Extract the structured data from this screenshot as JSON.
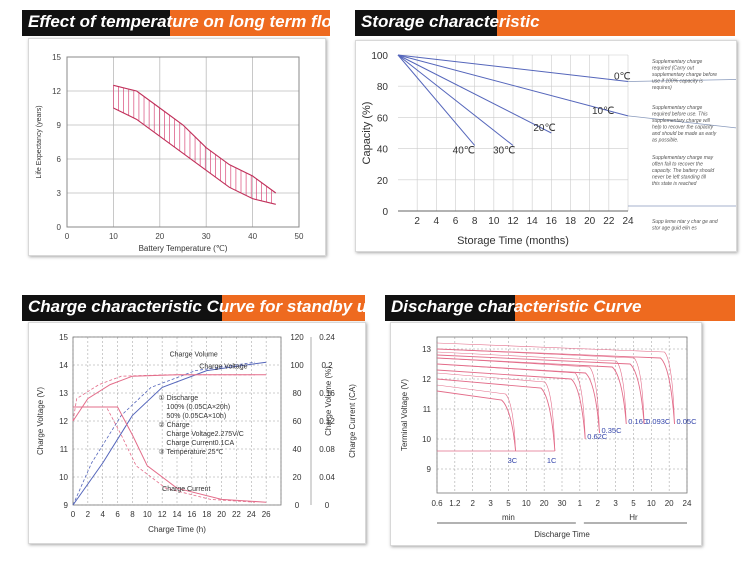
{
  "panels": {
    "float_life": {
      "title": "Effect of temperature on long term float life"
    },
    "storage": {
      "title": "Storage characteristic"
    },
    "charge": {
      "title": "Charge characteristic Curve for standby use"
    },
    "discharge": {
      "title": "Discharge characteristic Curve"
    }
  },
  "colors": {
    "orange": "#ee6a1f",
    "black": "#111111",
    "curve_red": "#e36d8a",
    "curve_blue": "#5566bb",
    "grid": "#c8c8c8"
  },
  "chart_data": [
    {
      "type": "area",
      "title": "Effect of temperature on long term float life",
      "xlabel": "Battery Temperature (℃)",
      "ylabel": "Life Expectancy (years)",
      "xlim": [
        0,
        50
      ],
      "ylim": [
        0,
        15
      ],
      "x_ticks": [
        0,
        10,
        20,
        30,
        40,
        50
      ],
      "y_ticks": [
        0,
        3,
        6,
        9,
        12,
        15
      ],
      "band": {
        "upper": [
          [
            10,
            12.5
          ],
          [
            15,
            12
          ],
          [
            20,
            10.5
          ],
          [
            25,
            9
          ],
          [
            30,
            7
          ],
          [
            35,
            5.5
          ],
          [
            40,
            4.5
          ],
          [
            45,
            3
          ]
        ],
        "lower": [
          [
            10,
            10.5
          ],
          [
            15,
            9.5
          ],
          [
            20,
            8
          ],
          [
            25,
            6.5
          ],
          [
            30,
            5
          ],
          [
            35,
            3.5
          ],
          [
            40,
            2.5
          ],
          [
            45,
            2
          ]
        ]
      }
    },
    {
      "type": "line",
      "title": "Storage characteristic",
      "xlabel": "Storage Time (months)",
      "ylabel": "Capacity (%)",
      "xlim": [
        0,
        24
      ],
      "ylim": [
        0,
        100
      ],
      "x_ticks": [
        2,
        4,
        6,
        8,
        10,
        12,
        14,
        16,
        18,
        20,
        22,
        24
      ],
      "y_ticks": [
        0,
        20,
        40,
        60,
        80,
        100
      ],
      "series": [
        {
          "name": "0℃",
          "points": [
            [
              0,
              100
            ],
            [
              24,
              83
            ]
          ]
        },
        {
          "name": "10℃",
          "points": [
            [
              0,
              100
            ],
            [
              24,
              61
            ]
          ]
        },
        {
          "name": "20℃",
          "points": [
            [
              0,
              100
            ],
            [
              16,
              50
            ]
          ]
        },
        {
          "name": "30℃",
          "points": [
            [
              0,
              100
            ],
            [
              12,
              42
            ]
          ]
        },
        {
          "name": "40℃",
          "points": [
            [
              0,
              100
            ],
            [
              8,
              42
            ]
          ]
        }
      ],
      "notes": [
        "Supplementary charge required (Carry out supplementary charge before use if 100% capacity is requires)",
        "Supplementary charge required before use. This supplementary charge will help to recover the capacity and should be made as early as possible.",
        "Supplementary charge may often fail to recover the capacity. The battery should never be left standing till this state is reached",
        "Supp leme ntar y char ge and stor age guid elin es"
      ]
    },
    {
      "type": "line",
      "title": "Charge characteristic Curve for standby use",
      "xlabel": "Charge Time (h)",
      "ylabel": "Charge Voltage (V)",
      "ylabel2": "Charge Volume (%)",
      "ylabel3": "Charge Current (CA)",
      "xlim": [
        0,
        28
      ],
      "ylim": [
        9,
        15
      ],
      "x_ticks": [
        0,
        2,
        4,
        6,
        8,
        10,
        12,
        14,
        16,
        18,
        20,
        22,
        24,
        26,
        28
      ],
      "y_ticks": [
        9,
        10,
        11,
        12,
        13,
        14,
        15
      ],
      "y2_ticks": [
        0,
        20,
        40,
        60,
        80,
        100,
        120
      ],
      "y3_ticks": [
        0,
        0.04,
        0.08,
        0.12,
        0.16,
        0.2,
        0.24
      ],
      "curve_labels": [
        "Charge Volume",
        "Charge Voltage",
        "Charge Current"
      ],
      "legend": [
        "① Discharge",
        "100% (0.05CA×20h)",
        "50% (0.05CA×10h)",
        "② Charge",
        "Charge Voltage2.275V/C",
        "Charge Current0.1CA",
        "③ Temperature 25℃"
      ],
      "series": [
        {
          "name": "Charge Volume",
          "points": [
            [
              0,
              9
            ],
            [
              4,
              10.5
            ],
            [
              8,
              12.2
            ],
            [
              12,
              13.2
            ],
            [
              18,
              13.8
            ],
            [
              26,
              14.1
            ]
          ]
        },
        {
          "name": "Charge Voltage",
          "points": [
            [
              0,
              12
            ],
            [
              2,
              12.8
            ],
            [
              5,
              13.3
            ],
            [
              8,
              13.6
            ],
            [
              14,
              13.65
            ],
            [
              26,
              13.65
            ]
          ]
        },
        {
          "name": "Charge Current",
          "points": [
            [
              0,
              12.5
            ],
            [
              6,
              12.5
            ],
            [
              8,
              11.5
            ],
            [
              10,
              10.4
            ],
            [
              14,
              9.6
            ],
            [
              20,
              9.2
            ],
            [
              26,
              9.1
            ]
          ]
        }
      ]
    },
    {
      "type": "line",
      "title": "Discharge characteristic Curve",
      "xlabel": "Discharge Time",
      "ylabel": "Terminal Voltage (V)",
      "ylim": [
        8,
        13.5
      ],
      "x_ticks": [
        "0.6",
        "1.2",
        "2",
        "3",
        "5",
        "10",
        "20",
        "30",
        "1",
        "2",
        "3",
        "5",
        "10",
        "20",
        "24"
      ],
      "y_ticks": [
        9,
        10,
        11,
        12,
        13
      ],
      "x_groups": [
        "min",
        "Hr"
      ],
      "series": [
        {
          "name": "3C",
          "end_v": 9.6
        },
        {
          "name": "1C",
          "end_v": 9.6
        },
        {
          "name": "0.62C",
          "end_v": 10.0
        },
        {
          "name": "0.35C",
          "end_v": 10.2
        },
        {
          "name": "0.16C",
          "end_v": 10.5
        },
        {
          "name": "0.093C",
          "end_v": 10.5
        },
        {
          "name": "0.05C",
          "end_v": 10.5
        }
      ]
    }
  ]
}
